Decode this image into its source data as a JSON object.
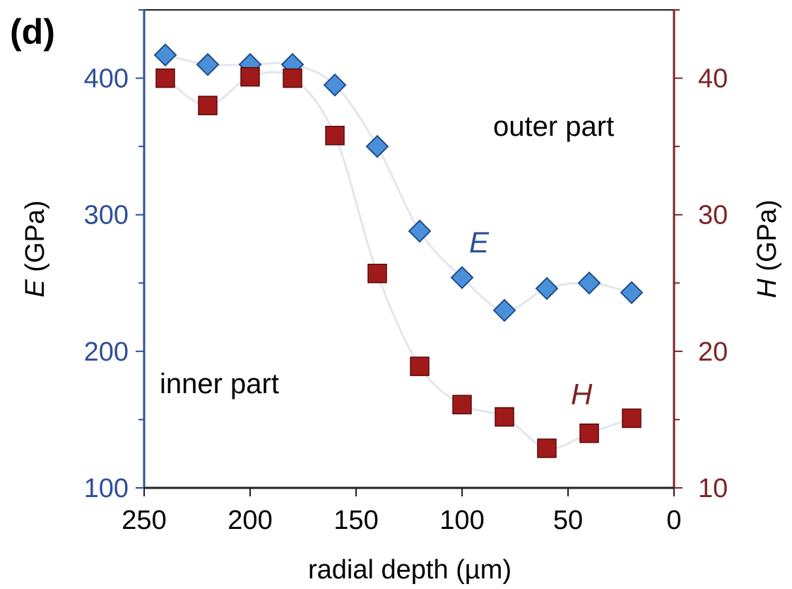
{
  "panel_label": "(d)",
  "annotations": {
    "outer": "outer part",
    "inner": "inner part"
  },
  "colors": {
    "e_series": "#4a90d9",
    "e_edge": "#1f4e8c",
    "h_series": "#a11a1a",
    "h_edge": "#5a0a0a",
    "left_axis": "#2f4f9a",
    "right_axis": "#7a2626",
    "trend_line": "#e2e6ee"
  },
  "chart_data": {
    "type": "scatter",
    "xlabel": "radial depth (µm)",
    "ylabel_left": {
      "symbol": "E",
      "unit": " (GPa)"
    },
    "ylabel_right": {
      "symbol": "H",
      "unit": " (GPa)"
    },
    "xlim": [
      250,
      0
    ],
    "x_reversed": true,
    "ylim_left": [
      100,
      450
    ],
    "ylim_right": [
      10,
      45
    ],
    "xticks": [
      250,
      200,
      150,
      100,
      50,
      0
    ],
    "yticks_left": [
      100,
      200,
      300,
      400
    ],
    "yticks_right": [
      10,
      20,
      30,
      40
    ],
    "grid": false,
    "series": [
      {
        "name": "E",
        "axis": "left",
        "marker": "diamond",
        "x": [
          240,
          220,
          200,
          180,
          160,
          140,
          120,
          100,
          80,
          60,
          40,
          20
        ],
        "y": [
          417,
          410,
          410,
          410,
          395,
          350,
          288,
          254,
          230,
          246,
          250,
          243
        ]
      },
      {
        "name": "H",
        "axis": "right",
        "marker": "square",
        "x": [
          240,
          220,
          200,
          180,
          160,
          140,
          120,
          100,
          80,
          60,
          40,
          20
        ],
        "y": [
          40.0,
          38.0,
          40.1,
          40.0,
          35.8,
          25.7,
          18.9,
          16.1,
          15.2,
          12.9,
          14.0,
          15.1
        ]
      }
    ]
  }
}
